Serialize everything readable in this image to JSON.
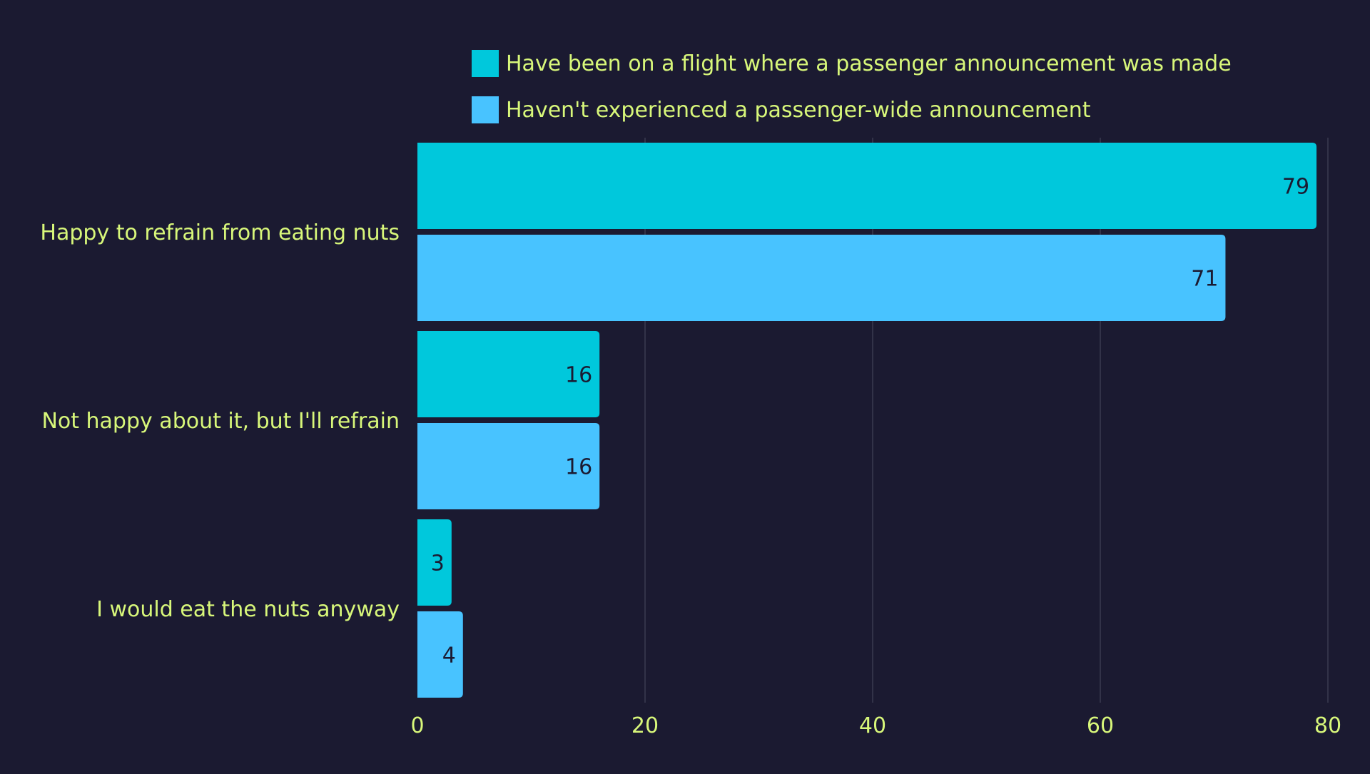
{
  "colors": {
    "background": "#1b1a31",
    "text": "#d8f77a",
    "gridline": "#3b3b50",
    "value_label": "#1b1a31"
  },
  "chart_data": {
    "type": "bar",
    "orientation": "horizontal",
    "title": "",
    "xlabel": "",
    "ylabel": "",
    "categories": [
      "Happy to refrain from eating nuts",
      "Not happy about it, but I'll refrain",
      "I would eat the nuts anyway"
    ],
    "series": [
      {
        "name": "Have been on a flight where a passenger announcement was made",
        "color": "#00c8dc",
        "values": [
          79,
          16,
          3
        ]
      },
      {
        "name": "Haven't experienced a passenger-wide announcement",
        "color": "#48c3ff",
        "values": [
          71,
          16,
          4
        ]
      }
    ],
    "xlim": [
      0,
      80
    ],
    "xticks": [
      "0",
      "20",
      "40",
      "60",
      "80"
    ],
    "grid": true,
    "legend_position": "top"
  }
}
